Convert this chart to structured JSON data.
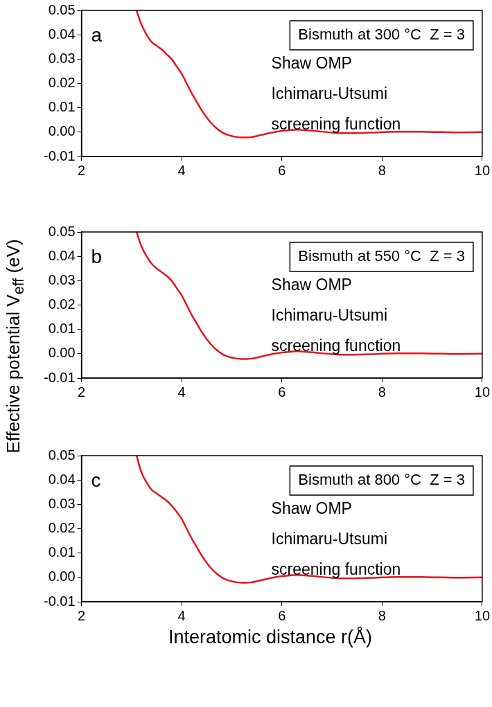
{
  "chart_data": [
    {
      "type": "line",
      "title": "Bismuth at 300 °C  Z = 3",
      "annotations": [
        "a",
        "Shaw OMP",
        "Ichimaru-Utsumi",
        "screening function"
      ],
      "series": [
        {
          "color": "#e8141a",
          "x": [
            3.1,
            3.2,
            3.3,
            3.4,
            3.5,
            3.6,
            3.7,
            3.8,
            3.9,
            4.0,
            4.1,
            4.2,
            4.3,
            4.4,
            4.5,
            4.6,
            4.7,
            4.8,
            4.9,
            5.0,
            5.1,
            5.2,
            5.3,
            5.4,
            5.5,
            5.6,
            5.8,
            6.0,
            6.2,
            6.3,
            6.4,
            6.6,
            6.8,
            7.0,
            7.2,
            7.4,
            7.6,
            7.8,
            8.0,
            8.3,
            8.6,
            8.9,
            9.2,
            9.5,
            10.0
          ],
          "values": [
            0.05,
            0.044,
            0.04,
            0.037,
            0.0355,
            0.034,
            0.032,
            0.03,
            0.027,
            0.024,
            0.02,
            0.016,
            0.0125,
            0.009,
            0.006,
            0.0035,
            0.0015,
            0.0,
            -0.001,
            -0.0016,
            -0.002,
            -0.0022,
            -0.0022,
            -0.002,
            -0.0016,
            -0.0011,
            -0.0002,
            0.0005,
            0.0009,
            0.001,
            0.0009,
            0.0006,
            0.0002,
            -0.0002,
            -0.0004,
            -0.0004,
            -0.0003,
            -0.0002,
            0.0,
            0.0002,
            0.0002,
            0.0001,
            0.0,
            -0.0001,
            0.0
          ]
        }
      ],
      "xlim": [
        2,
        10
      ],
      "xticks": [
        2,
        4,
        6,
        8,
        10
      ],
      "ylim": [
        -0.01,
        0.05
      ],
      "yticks": [
        {
          "value": -0.01,
          "label": "-0.01"
        },
        {
          "value": 0,
          "label": "0.00"
        },
        {
          "value": 0.01,
          "label": "0.01"
        },
        {
          "value": 0.02,
          "label": "0.02"
        },
        {
          "value": 0.03,
          "label": "0.03"
        },
        {
          "value": 0.04,
          "label": "0.04"
        },
        {
          "value": 0.05,
          "label": "0.05"
        }
      ],
      "grid": false,
      "legend": false,
      "marker": "none",
      "line_style": "solid"
    },
    {
      "type": "line",
      "title": "Bismuth at 550 °C  Z = 3",
      "ylabel": "Effective potential V$_{eff}$ (eV)",
      "annotations": [
        "b",
        "Shaw OMP",
        "Ichimaru-Utsumi",
        "screening function"
      ],
      "series": [
        {
          "color": "#e8141a",
          "x": [
            3.1,
            3.2,
            3.3,
            3.4,
            3.5,
            3.6,
            3.7,
            3.8,
            3.9,
            4.0,
            4.1,
            4.2,
            4.3,
            4.4,
            4.5,
            4.6,
            4.7,
            4.8,
            4.9,
            5.0,
            5.1,
            5.2,
            5.3,
            5.4,
            5.5,
            5.6,
            5.8,
            6.0,
            6.2,
            6.3,
            6.4,
            6.6,
            6.8,
            7.0,
            7.2,
            7.4,
            7.6,
            7.8,
            8.0,
            8.3,
            8.6,
            8.9,
            9.2,
            9.5,
            10.0
          ],
          "values": [
            0.05,
            0.044,
            0.04,
            0.037,
            0.035,
            0.0335,
            0.032,
            0.03,
            0.027,
            0.024,
            0.02,
            0.016,
            0.0125,
            0.009,
            0.006,
            0.0035,
            0.0015,
            0.0,
            -0.001,
            -0.0016,
            -0.002,
            -0.0022,
            -0.0022,
            -0.002,
            -0.0016,
            -0.0011,
            -0.0002,
            0.0005,
            0.0009,
            0.001,
            0.0009,
            0.0006,
            0.0002,
            -0.0002,
            -0.0004,
            -0.0004,
            -0.0003,
            -0.0002,
            0.0,
            0.0002,
            0.0002,
            0.0001,
            0.0,
            -0.0001,
            0.0
          ]
        }
      ],
      "xlim": [
        2,
        10
      ],
      "xticks": [
        2,
        4,
        6,
        8,
        10
      ],
      "ylim": [
        -0.01,
        0.05
      ],
      "yticks": [
        {
          "value": -0.01,
          "label": "-0.01"
        },
        {
          "value": 0,
          "label": "0.00"
        },
        {
          "value": 0.01,
          "label": "0.01"
        },
        {
          "value": 0.02,
          "label": "0.02"
        },
        {
          "value": 0.03,
          "label": "0.03"
        },
        {
          "value": 0.04,
          "label": "0.04"
        },
        {
          "value": 0.05,
          "label": "0.05"
        }
      ],
      "grid": false,
      "legend": false,
      "marker": "none",
      "line_style": "solid"
    },
    {
      "type": "line",
      "title": "Bismuth at 800 °C  Z = 3",
      "xlabel": "Interatomic distance r(Å)",
      "annotations": [
        "c",
        "Shaw OMP",
        "Ichimaru-Utsumi",
        "screening function"
      ],
      "series": [
        {
          "color": "#e8141a",
          "x": [
            3.1,
            3.2,
            3.3,
            3.4,
            3.5,
            3.6,
            3.7,
            3.8,
            3.9,
            4.0,
            4.1,
            4.2,
            4.3,
            4.4,
            4.5,
            4.6,
            4.7,
            4.8,
            4.9,
            5.0,
            5.1,
            5.2,
            5.3,
            5.4,
            5.5,
            5.6,
            5.8,
            6.0,
            6.2,
            6.3,
            6.4,
            6.6,
            6.8,
            7.0,
            7.2,
            7.4,
            7.6,
            7.8,
            8.0,
            8.3,
            8.6,
            8.9,
            9.2,
            9.5,
            10.0
          ],
          "values": [
            0.05,
            0.043,
            0.039,
            0.036,
            0.0345,
            0.033,
            0.0315,
            0.0295,
            0.027,
            0.024,
            0.02,
            0.016,
            0.0125,
            0.009,
            0.006,
            0.0035,
            0.0015,
            0.0,
            -0.001,
            -0.0016,
            -0.002,
            -0.0022,
            -0.0022,
            -0.002,
            -0.0016,
            -0.0011,
            -0.0002,
            0.0005,
            0.0009,
            0.001,
            0.0009,
            0.0006,
            0.0002,
            -0.0002,
            -0.0004,
            -0.0004,
            -0.0003,
            -0.0002,
            0.0,
            0.0002,
            0.0002,
            0.0001,
            0.0,
            -0.0001,
            0.0
          ]
        }
      ],
      "xlim": [
        2,
        10
      ],
      "xticks": [
        2,
        4,
        6,
        8,
        10
      ],
      "ylim": [
        -0.01,
        0.05
      ],
      "yticks": [
        {
          "value": -0.01,
          "label": "-0.01"
        },
        {
          "value": 0,
          "label": "0.00"
        },
        {
          "value": 0.01,
          "label": "0.01"
        },
        {
          "value": 0.02,
          "label": "0.02"
        },
        {
          "value": 0.03,
          "label": "0.03"
        },
        {
          "value": 0.04,
          "label": "0.04"
        },
        {
          "value": 0.05,
          "label": "0.05"
        }
      ],
      "grid": false,
      "legend": false,
      "marker": "none",
      "line_style": "solid"
    }
  ]
}
